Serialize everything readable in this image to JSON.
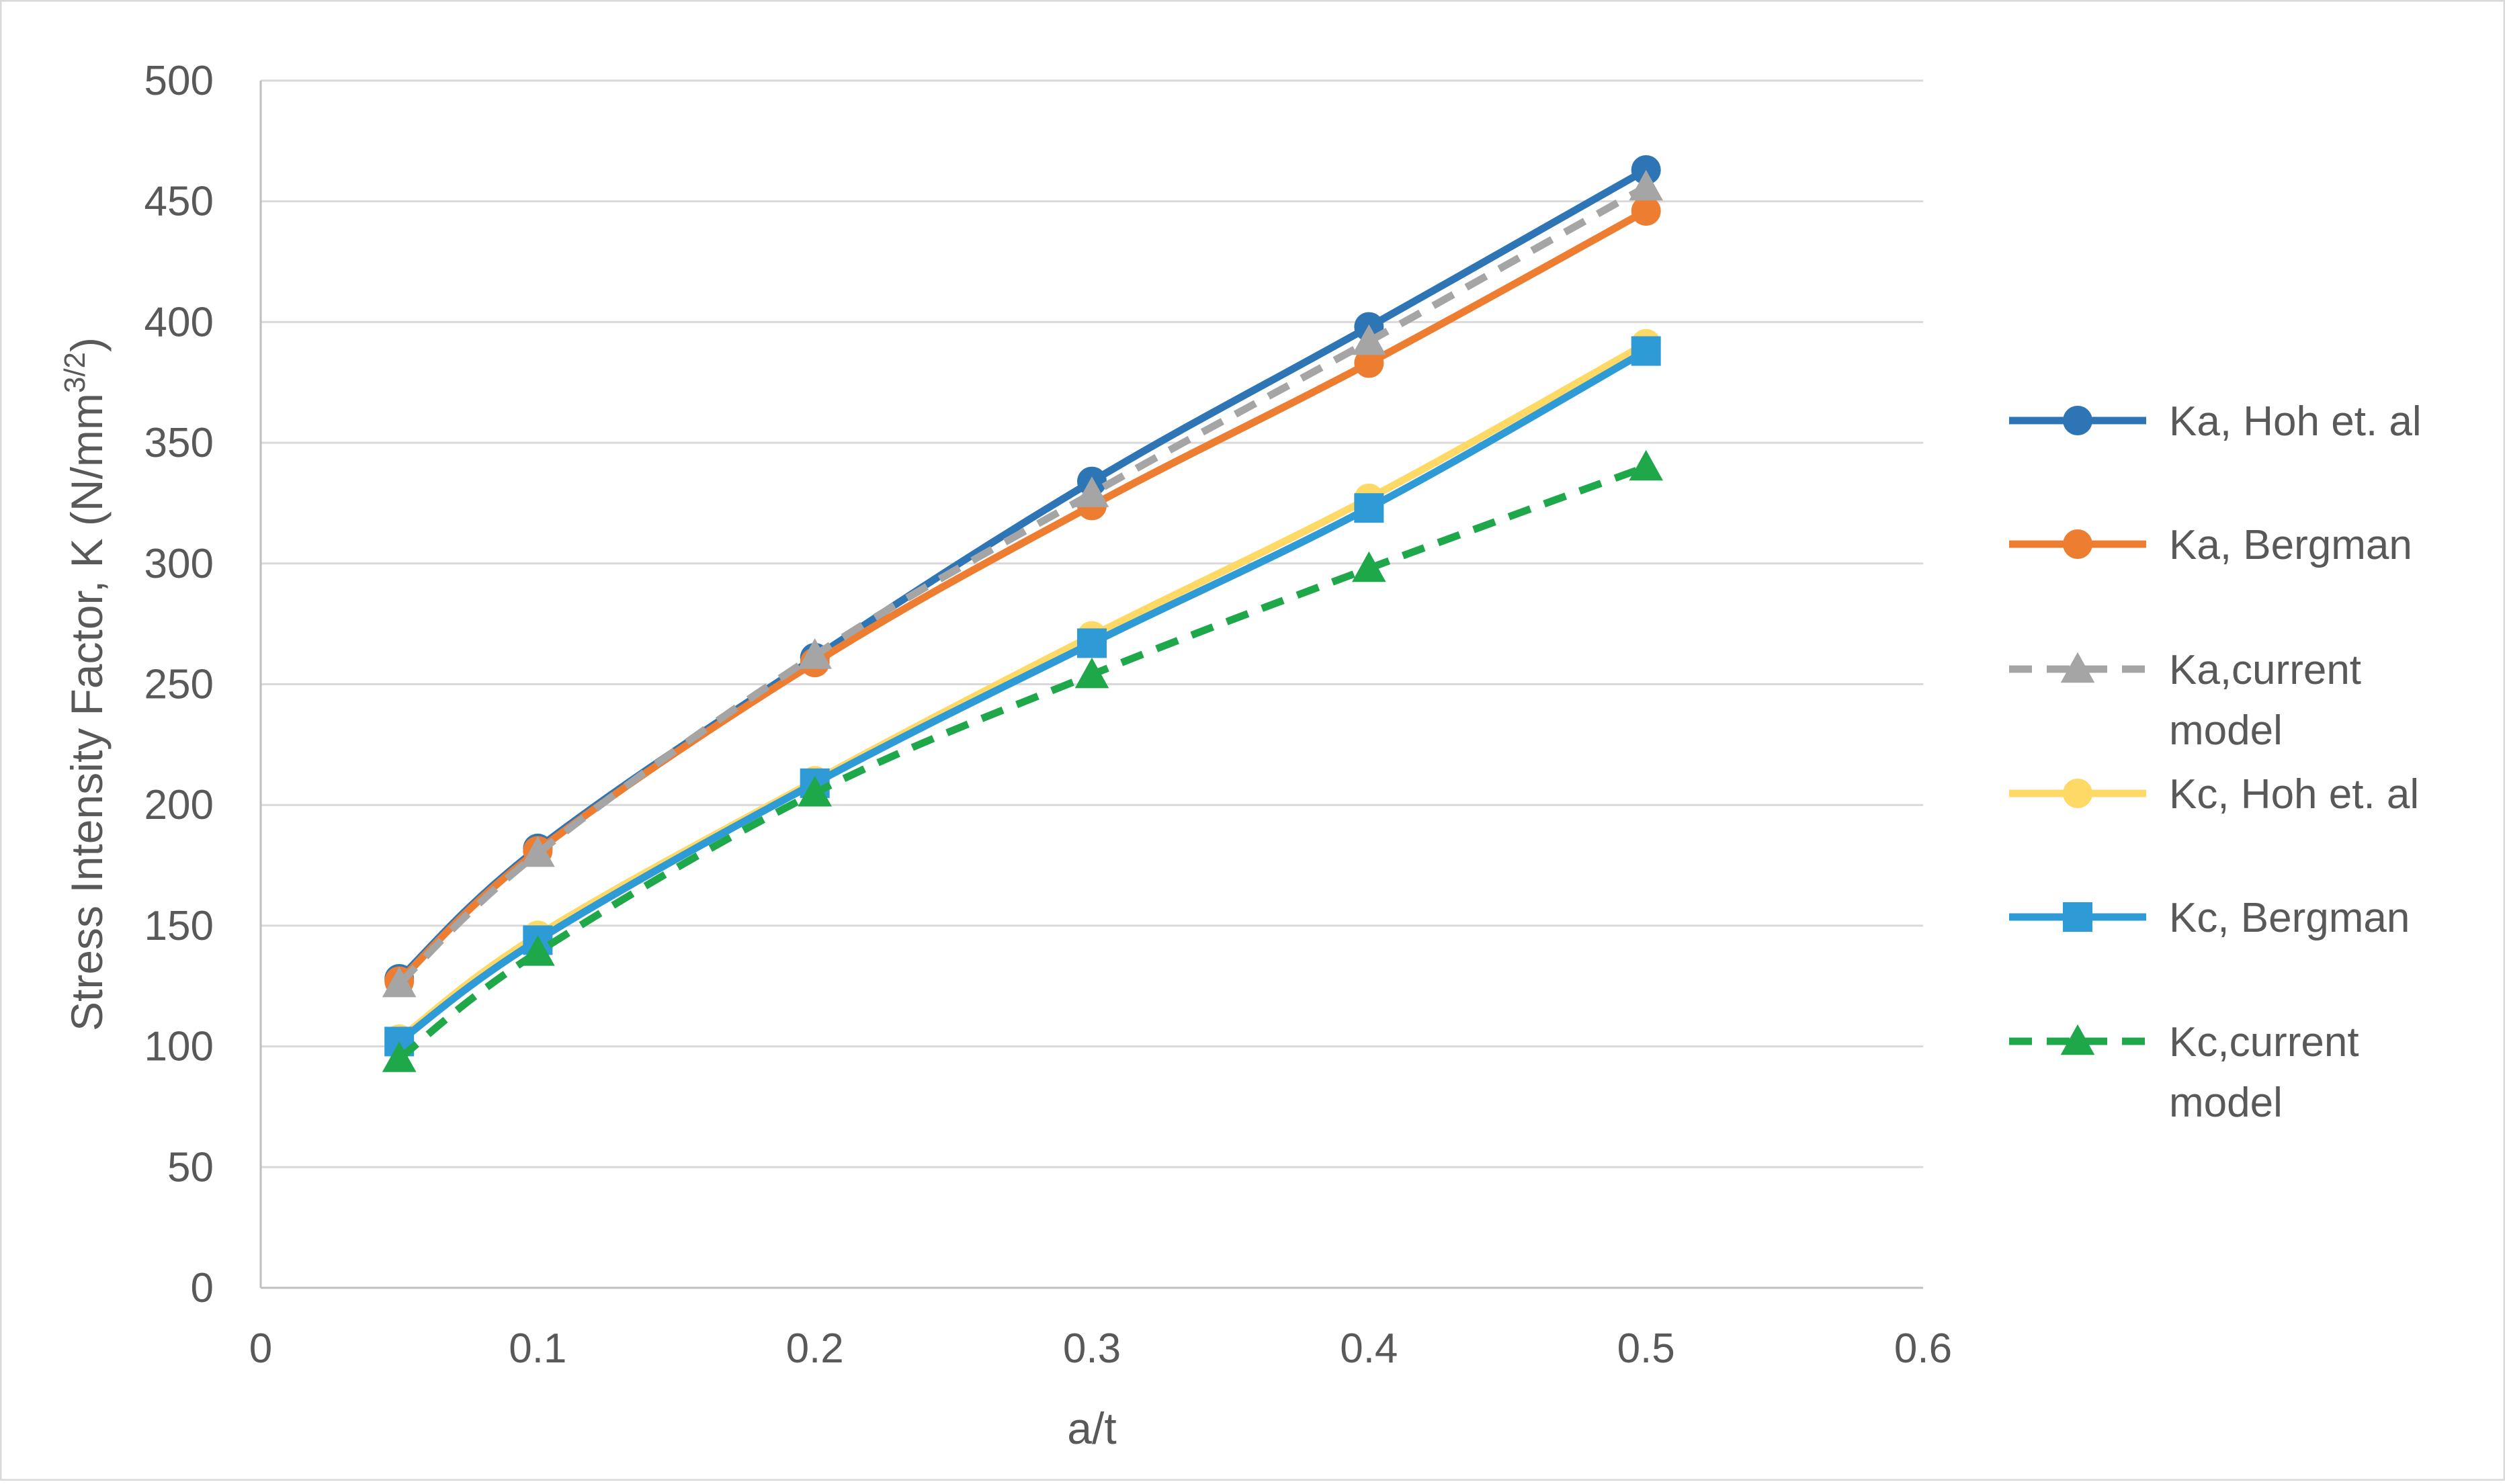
{
  "chart_data": {
    "type": "line",
    "title": "",
    "xlabel": "a/t",
    "ylabel": "Stress Intensity Factor, K (N/mm",
    "ylabel_superscript": "3/2",
    "ylabel_suffix": ")",
    "xlim": [
      0,
      0.6
    ],
    "ylim": [
      0,
      500
    ],
    "x_ticks": [
      "0",
      "0.1",
      "0.2",
      "0.3",
      "0.4",
      "0.5",
      "0.6"
    ],
    "y_ticks": [
      "0",
      "50",
      "100",
      "150",
      "200",
      "250",
      "300",
      "350",
      "400",
      "450",
      "500"
    ],
    "grid": "horizontal",
    "legend_position": "right",
    "x": [
      0.05,
      0.1,
      0.2,
      0.3,
      0.4,
      0.5
    ],
    "series": [
      {
        "name": "Ka, Hoh et. al",
        "name_lines": [
          "Ka, Hoh et. al"
        ],
        "color": "#2E75B6",
        "dash": "solid",
        "marker": "circle",
        "values": [
          128,
          182,
          261,
          334,
          398,
          463
        ]
      },
      {
        "name": "Ka, Bergman",
        "name_lines": [
          "Ka, Bergman"
        ],
        "color": "#ED7D31",
        "dash": "solid",
        "marker": "circle",
        "values": [
          127,
          181,
          259,
          324,
          383,
          446
        ]
      },
      {
        "name": "Ka,current model",
        "name_lines": [
          "Ka,current",
          "model"
        ],
        "color": "#A5A5A5",
        "dash": "dashed",
        "marker": "triangle",
        "values": [
          126,
          180,
          262,
          329,
          392,
          456
        ]
      },
      {
        "name": "Kc, Hoh et. al",
        "name_lines": [
          "Kc, Hoh et. al"
        ],
        "color": "#FFD966",
        "dash": "solid",
        "marker": "circle",
        "values": [
          103,
          146,
          210,
          270,
          327,
          391
        ]
      },
      {
        "name": "Kc, Bergman",
        "name_lines": [
          "Kc, Bergman"
        ],
        "color": "#2E9BD6",
        "dash": "solid",
        "marker": "square",
        "values": [
          102,
          144,
          209,
          267,
          323,
          388
        ]
      },
      {
        "name": "Kc,current model",
        "name_lines": [
          "Kc,current",
          "model"
        ],
        "color": "#1FA84A",
        "dash": "dashed",
        "marker": "triangle",
        "values": [
          95,
          139,
          205,
          254,
          298,
          340
        ]
      }
    ]
  }
}
